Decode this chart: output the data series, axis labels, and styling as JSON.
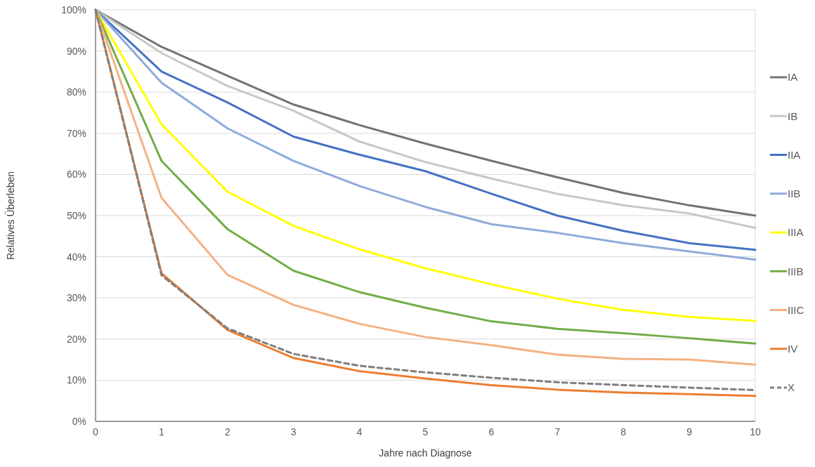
{
  "chart_data": {
    "type": "line",
    "xlabel": "Jahre nach Diagnose",
    "ylabel": "Relatives Überleben",
    "x": [
      0,
      1,
      2,
      3,
      4,
      5,
      6,
      7,
      8,
      9,
      10
    ],
    "xlim": [
      0,
      10
    ],
    "xticks": [
      0,
      1,
      2,
      3,
      4,
      5,
      6,
      7,
      8,
      9,
      10
    ],
    "ylim": [
      0,
      100
    ],
    "yticks": [
      {
        "value": 0,
        "label": "0%"
      },
      {
        "value": 10,
        "label": "10%"
      },
      {
        "value": 20,
        "label": "20%"
      },
      {
        "value": 30,
        "label": "30%"
      },
      {
        "value": 40,
        "label": "40%"
      },
      {
        "value": 50,
        "label": "50%"
      },
      {
        "value": 60,
        "label": "60%"
      },
      {
        "value": 70,
        "label": "70%"
      },
      {
        "value": 80,
        "label": "80%"
      },
      {
        "value": 90,
        "label": "90%"
      },
      {
        "value": 100,
        "label": "100%"
      }
    ],
    "grid": "y",
    "legend": "right",
    "marker": "none",
    "series": [
      {
        "name": "IA",
        "color": "#737373",
        "values": [
          100,
          91,
          84,
          77,
          72,
          67.5,
          63.3,
          59.3,
          55.5,
          52.5,
          50
        ]
      },
      {
        "name": "IB",
        "color": "#c8c8c8",
        "values": [
          100,
          89.5,
          81.5,
          75.5,
          68,
          63,
          59,
          55.3,
          52.5,
          50.5,
          47
        ]
      },
      {
        "name": "IIA",
        "color": "#4472c4",
        "values": [
          100,
          85,
          77.5,
          69.2,
          64.8,
          60.8,
          55.3,
          50,
          46.3,
          43.3,
          41.7
        ]
      },
      {
        "name": "IIB",
        "color": "#8faadc",
        "values": [
          100,
          82.3,
          71.2,
          63.3,
          57.2,
          52.1,
          47.9,
          45.8,
          43.3,
          41.3,
          39.3
        ]
      },
      {
        "name": "IIIA",
        "color": "#ffff00",
        "values": [
          100,
          72.2,
          55.8,
          47.5,
          41.8,
          37.2,
          33.3,
          29.8,
          27.1,
          25.4,
          24.4
        ]
      },
      {
        "name": "IIIB",
        "color": "#70ad47",
        "values": [
          100,
          63.3,
          46.7,
          36.6,
          31.4,
          27.6,
          24.3,
          22.5,
          21.4,
          20.2,
          18.9
        ]
      },
      {
        "name": "IIIC",
        "color": "#f4b183",
        "values": [
          100,
          54.3,
          35.6,
          28.3,
          23.7,
          20.5,
          18.5,
          16.2,
          15.2,
          15,
          13.8
        ]
      },
      {
        "name": "IV",
        "color": "#ed7d31",
        "values": [
          100,
          36,
          22.2,
          15.4,
          12.2,
          10.4,
          8.8,
          7.7,
          7,
          6.6,
          6.2
        ]
      },
      {
        "name": "X",
        "color": "#7f7f7f",
        "line_style": "dashed",
        "values": [
          100,
          35.5,
          22.6,
          16.4,
          13.5,
          11.9,
          10.6,
          9.5,
          8.8,
          8.2,
          7.6
        ]
      }
    ]
  }
}
